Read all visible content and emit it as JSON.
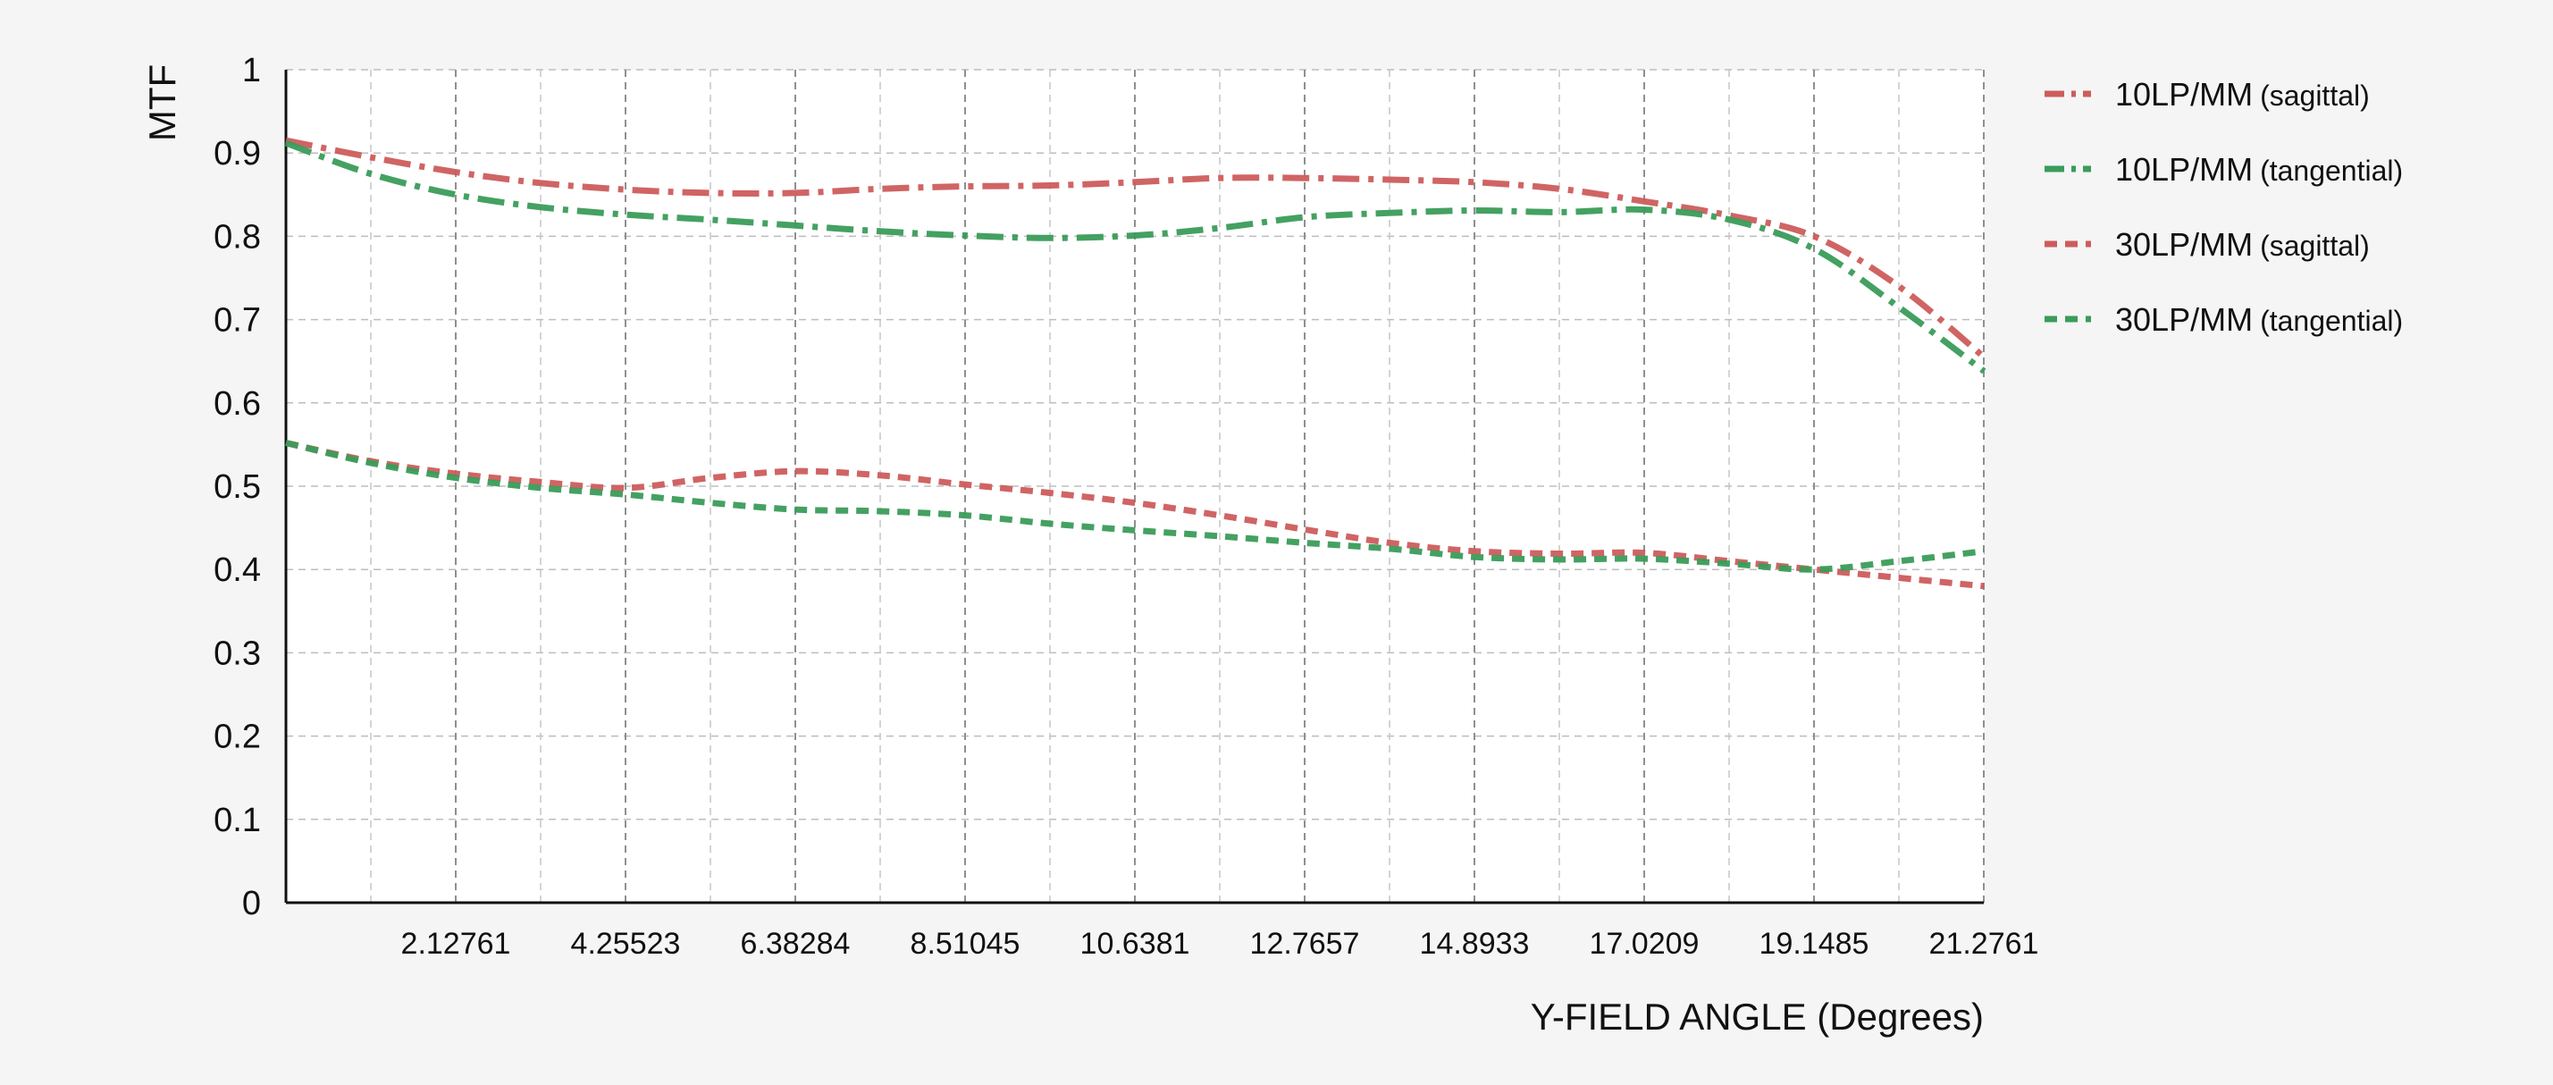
{
  "chart_data": {
    "type": "line",
    "xlabel": "Y-FIELD ANGLE (Degrees)",
    "ylabel": "MTF",
    "xlim": [
      0,
      21.2761
    ],
    "ylim": [
      0,
      1
    ],
    "grid": true,
    "legend_position": "top-right",
    "y_ticks": [
      "0",
      "0.1",
      "0.2",
      "0.3",
      "0.4",
      "0.5",
      "0.6",
      "0.7",
      "0.8",
      "0.9",
      "1"
    ],
    "x_ticks": [
      {
        "value": 2.12761,
        "label": "2.12761"
      },
      {
        "value": 4.25523,
        "label": "4.25523"
      },
      {
        "value": 6.38284,
        "label": "6.38284"
      },
      {
        "value": 8.51045,
        "label": "8.51045"
      },
      {
        "value": 10.6381,
        "label": "10.6381"
      },
      {
        "value": 12.7657,
        "label": "12.7657"
      },
      {
        "value": 14.8933,
        "label": "14.8933"
      },
      {
        "value": 17.0209,
        "label": "17.0209"
      },
      {
        "value": 19.1485,
        "label": "19.1485"
      },
      {
        "value": 21.2761,
        "label": "21.2761"
      }
    ],
    "series": [
      {
        "name": "10LP/MM",
        "qualifier": "(sagittal)",
        "color": "#cd5c5c",
        "style": "dashdot",
        "x": [
          0,
          1.06,
          2.13,
          3.19,
          4.26,
          5.32,
          6.38,
          7.45,
          8.51,
          9.57,
          10.64,
          11.7,
          12.77,
          13.83,
          14.89,
          15.96,
          17.02,
          18.09,
          19.15,
          20.21,
          21.28
        ],
        "y": [
          0.915,
          0.895,
          0.877,
          0.864,
          0.856,
          0.852,
          0.852,
          0.857,
          0.86,
          0.861,
          0.865,
          0.87,
          0.87,
          0.868,
          0.865,
          0.857,
          0.842,
          0.825,
          0.8,
          0.74,
          0.655
        ]
      },
      {
        "name": "10LP/MM",
        "qualifier": "(tangential)",
        "color": "#3a9c5a",
        "style": "dashdot",
        "x": [
          0,
          1.06,
          2.13,
          3.19,
          4.26,
          5.32,
          6.38,
          7.45,
          8.51,
          9.57,
          10.64,
          11.7,
          12.77,
          13.83,
          14.89,
          15.96,
          17.02,
          18.09,
          19.15,
          20.21,
          21.28
        ],
        "y": [
          0.912,
          0.875,
          0.85,
          0.835,
          0.826,
          0.82,
          0.813,
          0.806,
          0.801,
          0.798,
          0.801,
          0.81,
          0.823,
          0.828,
          0.831,
          0.829,
          0.832,
          0.82,
          0.785,
          0.715,
          0.638
        ]
      },
      {
        "name": "30LP/MM",
        "qualifier": "(sagittal)",
        "color": "#cd5c5c",
        "style": "dashed",
        "x": [
          0,
          1.06,
          2.13,
          3.19,
          4.26,
          5.32,
          6.38,
          7.45,
          8.51,
          9.57,
          10.64,
          11.7,
          12.77,
          13.83,
          14.89,
          15.96,
          17.02,
          18.09,
          19.15,
          20.21,
          21.28
        ],
        "y": [
          0.552,
          0.53,
          0.515,
          0.505,
          0.498,
          0.51,
          0.518,
          0.513,
          0.502,
          0.492,
          0.48,
          0.465,
          0.448,
          0.432,
          0.422,
          0.419,
          0.42,
          0.41,
          0.4,
          0.39,
          0.38
        ]
      },
      {
        "name": "30LP/MM",
        "qualifier": "(tangential)",
        "color": "#3a9c5a",
        "style": "dashed",
        "x": [
          0,
          1.06,
          2.13,
          3.19,
          4.26,
          5.32,
          6.38,
          7.45,
          8.51,
          9.57,
          10.64,
          11.7,
          12.77,
          13.83,
          14.89,
          15.96,
          17.02,
          18.09,
          19.15,
          20.21,
          21.28
        ],
        "y": [
          0.552,
          0.528,
          0.51,
          0.498,
          0.49,
          0.48,
          0.472,
          0.47,
          0.465,
          0.455,
          0.447,
          0.44,
          0.432,
          0.425,
          0.415,
          0.412,
          0.413,
          0.407,
          0.4,
          0.41,
          0.422
        ]
      }
    ]
  }
}
